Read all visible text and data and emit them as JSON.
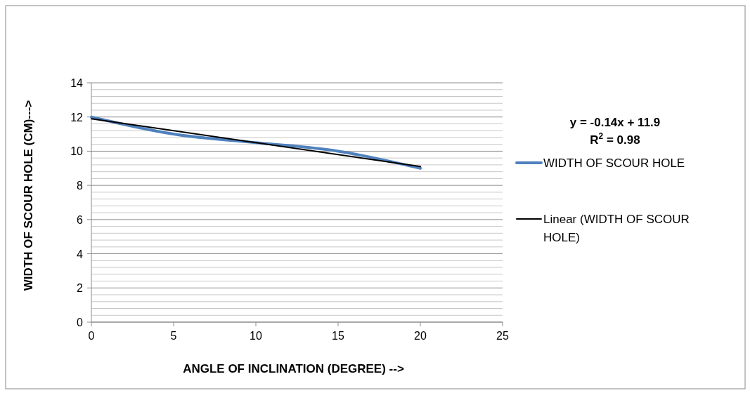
{
  "chart_data": {
    "type": "line",
    "xlabel": "ANGLE OF INCLINATION (DEGREE) -->",
    "ylabel": "WIDTH OF SCOUR HOLE (CM)--->",
    "xlim": [
      0,
      25
    ],
    "xticks": [
      0,
      5,
      10,
      15,
      20,
      25
    ],
    "ylim": [
      0,
      14
    ],
    "yticks": [
      0,
      {
        "value": 0.4,
        "label": null
      },
      {
        "value": 0.8,
        "label": null
      },
      {
        "value": 1.2,
        "label": null
      },
      {
        "value": 1.6,
        "label": null
      },
      2,
      {
        "value": 2.4,
        "label": null
      },
      {
        "value": 2.8,
        "label": null
      },
      {
        "value": 3.2,
        "label": null
      },
      {
        "value": 3.6,
        "label": null
      },
      4,
      {
        "value": 4.4,
        "label": null
      },
      {
        "value": 4.8,
        "label": null
      },
      {
        "value": 5.2,
        "label": null
      },
      {
        "value": 5.6,
        "label": null
      },
      6,
      {
        "value": 6.4,
        "label": null
      },
      {
        "value": 6.8,
        "label": null
      },
      {
        "value": 7.2,
        "label": null
      },
      {
        "value": 7.6,
        "label": null
      },
      8,
      {
        "value": 8.4,
        "label": null
      },
      {
        "value": 8.8,
        "label": null
      },
      {
        "value": 9.2,
        "label": null
      },
      {
        "value": 9.6,
        "label": null
      },
      10,
      {
        "value": 10.4,
        "label": null
      },
      {
        "value": 10.8,
        "label": null
      },
      {
        "value": 11.2,
        "label": null
      },
      {
        "value": 11.6,
        "label": null
      },
      12,
      {
        "value": 12.4,
        "label": null
      },
      {
        "value": 12.8,
        "label": null
      },
      {
        "value": 13.2,
        "label": null
      },
      {
        "value": 13.6,
        "label": null
      },
      14
    ],
    "grid": "y",
    "legend": "right",
    "line_style": "solid",
    "marker": "none",
    "x": [
      0,
      5,
      10,
      15,
      20
    ],
    "series": [
      {
        "name": "WIDTH OF SCOUR HOLE",
        "color": "#4f81bd",
        "values": [
          12,
          11,
          10.5,
          10,
          9
        ]
      },
      {
        "name": "Linear (WIDTH OF SCOUR HOLE)",
        "color": "#000000",
        "x": [
          0,
          20
        ],
        "values": [
          11.9,
          9.1
        ]
      }
    ],
    "annotations": [
      "y = -0.14x + 11.9",
      "R$^{2}$ = 0.98"
    ]
  }
}
